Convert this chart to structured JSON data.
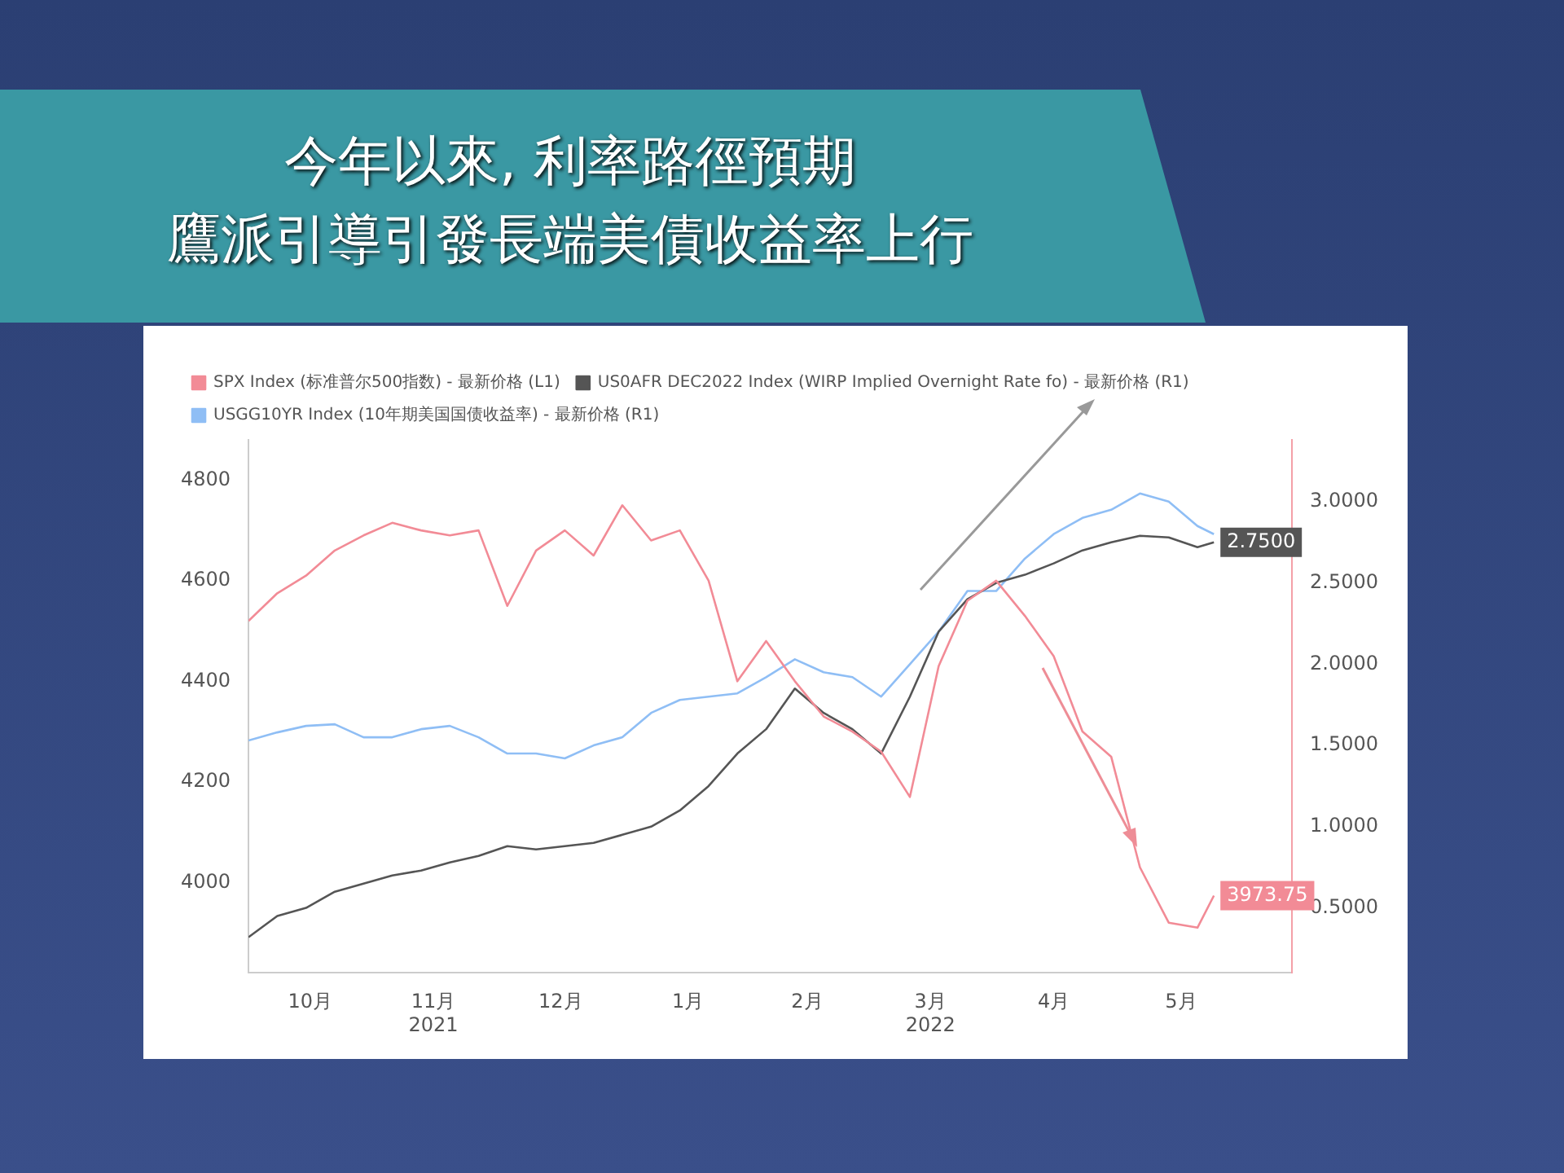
{
  "chart_data": {
    "type": "line",
    "title": "今年以來, 利率路徑預期",
    "subtitle": "鷹派引導引發長端美債收益率上行",
    "x": [
      "2021-10-01",
      "2021-10-08",
      "2021-10-15",
      "2021-10-22",
      "2021-10-29",
      "2021-11-05",
      "2021-11-12",
      "2021-11-19",
      "2021-11-26",
      "2021-12-03",
      "2021-12-10",
      "2021-12-17",
      "2021-12-24",
      "2021-12-31",
      "2022-01-07",
      "2022-01-14",
      "2022-01-21",
      "2022-01-28",
      "2022-02-04",
      "2022-02-11",
      "2022-02-18",
      "2022-02-25",
      "2022-03-04",
      "2022-03-11",
      "2022-03-18",
      "2022-03-25",
      "2022-04-01",
      "2022-04-08",
      "2022-04-15",
      "2022-04-22",
      "2022-04-29",
      "2022-05-06",
      "2022-05-13",
      "2022-05-20",
      "2022-05-24"
    ],
    "xlim": [
      "2021-10-01",
      "2022-06-12"
    ],
    "xticks": [
      {
        "value": "2021-10-16",
        "label": "10月"
      },
      {
        "value": "2021-11-15",
        "label": "11月\n2021"
      },
      {
        "value": "2021-12-16",
        "label": "12月"
      },
      {
        "value": "2022-01-16",
        "label": "1月"
      },
      {
        "value": "2022-02-14",
        "label": "2月"
      },
      {
        "value": "2022-03-16",
        "label": "3月\n2022"
      },
      {
        "value": "2022-04-15",
        "label": "4月"
      },
      {
        "value": "2022-05-16",
        "label": "5月"
      }
    ],
    "ylim": [
      3820,
      4880
    ],
    "yticks": [
      4000,
      4200,
      4400,
      4600,
      4800
    ],
    "y2lim": [
      0.1,
      3.38
    ],
    "y2ticks": [
      {
        "value": 0.5,
        "label": "0.5000"
      },
      {
        "value": 1,
        "label": "1.0000"
      },
      {
        "value": 1.5,
        "label": "1.5000"
      },
      {
        "value": 2,
        "label": "2.0000"
      },
      {
        "value": 2.5,
        "label": "2.5000"
      },
      {
        "value": 3,
        "label": "3.0000"
      }
    ],
    "grid": false,
    "legend": "top left",
    "marker": "none",
    "line_style": "solid",
    "series": [
      {
        "name": "SPX Index (标准普尔500指数) - 最新价格 (L1)",
        "color": "#f28b96",
        "values": [
          4520,
          4575,
          4610,
          4660,
          4690,
          4715,
          4700,
          4690,
          4700,
          4550,
          4660,
          4700,
          4650,
          4750,
          4680,
          4700,
          4600,
          4400,
          4480,
          4400,
          4330,
          4300,
          4260,
          4170,
          4430,
          4560,
          4600,
          4530,
          4450,
          4300,
          4250,
          4030,
          3920,
          3910,
          3973.75
        ],
        "value_labels": [
          null,
          null,
          null,
          null,
          null,
          null,
          null,
          null,
          null,
          null,
          null,
          null,
          null,
          null,
          null,
          null,
          null,
          null,
          null,
          null,
          null,
          null,
          null,
          null,
          null,
          null,
          null,
          null,
          null,
          null,
          null,
          null,
          null,
          null,
          "3973.75"
        ]
      },
      {
        "name": "US0AFR DEC2022 Index (WIRP Implied Overnight Rate fo) - 最新价格 (R1)",
        "color": "#555555",
        "axis": "y2",
        "values": [
          0.32,
          0.45,
          0.5,
          0.6,
          0.65,
          0.7,
          0.73,
          0.78,
          0.82,
          0.88,
          0.86,
          0.88,
          0.9,
          0.95,
          1.0,
          1.1,
          1.25,
          1.45,
          1.6,
          1.85,
          1.7,
          1.6,
          1.45,
          1.8,
          2.2,
          2.4,
          2.5,
          2.55,
          2.62,
          2.7,
          2.75,
          2.79,
          2.78,
          2.72,
          2.75
        ],
        "value_labels": [
          null,
          null,
          null,
          null,
          null,
          null,
          null,
          null,
          null,
          null,
          null,
          null,
          null,
          null,
          null,
          null,
          null,
          null,
          null,
          null,
          null,
          null,
          null,
          null,
          null,
          null,
          null,
          null,
          null,
          null,
          null,
          null,
          null,
          null,
          "2.7500"
        ]
      },
      {
        "name": "USGG10YR Index (10年期美国国债收益率) - 最新价格 (R1)",
        "color": "#8fbef5",
        "axis": "y2",
        "values": [
          1.53,
          1.58,
          1.62,
          1.63,
          1.55,
          1.55,
          1.6,
          1.62,
          1.55,
          1.45,
          1.45,
          1.42,
          1.5,
          1.55,
          1.7,
          1.78,
          1.8,
          1.82,
          1.92,
          2.03,
          1.95,
          1.92,
          1.8,
          2.0,
          2.2,
          2.45,
          2.45,
          2.65,
          2.8,
          2.9,
          2.95,
          3.05,
          3.0,
          2.85,
          2.8
        ]
      }
    ]
  }
}
